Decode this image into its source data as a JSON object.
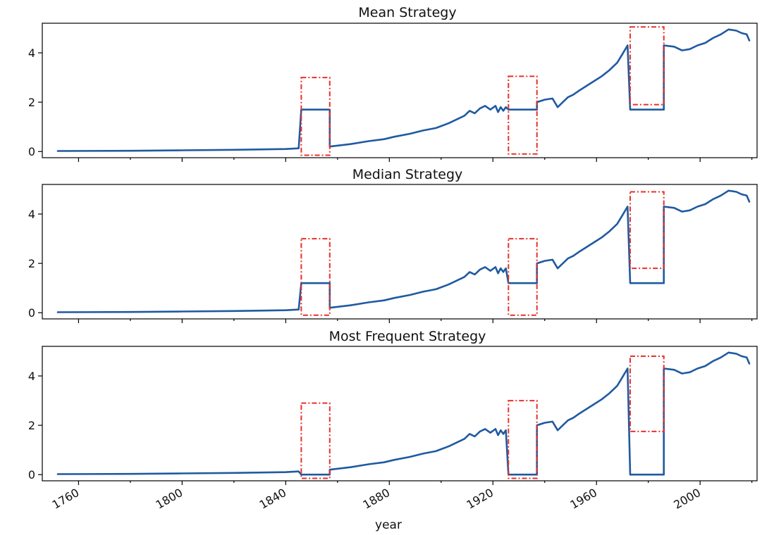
{
  "colors": {
    "series": "#1f5aa0",
    "gap_box": "#e8302a"
  },
  "xlabel": "year",
  "chart_data": [
    {
      "type": "line",
      "title": "Mean Strategy",
      "fill_value": 1.7,
      "xlim": [
        1746,
        2022
      ],
      "ylim": [
        -0.25,
        5.2
      ],
      "yticks": [
        0,
        2,
        4
      ],
      "xticks": [
        1760,
        1800,
        1840,
        1880,
        1920,
        1960,
        2000
      ],
      "show_xtick_labels": false,
      "gap_boxes": [
        {
          "x": [
            1846,
            1857
          ],
          "y": [
            -0.15,
            3.0
          ]
        },
        {
          "x": [
            1926,
            1937
          ],
          "y": [
            -0.1,
            3.05
          ]
        },
        {
          "x": [
            1973,
            1986
          ],
          "y": [
            1.9,
            5.05
          ]
        }
      ]
    },
    {
      "type": "line",
      "title": "Median Strategy",
      "fill_value": 1.2,
      "xlim": [
        1746,
        2022
      ],
      "ylim": [
        -0.25,
        5.2
      ],
      "yticks": [
        0,
        2,
        4
      ],
      "xticks": [
        1760,
        1800,
        1840,
        1880,
        1920,
        1960,
        2000
      ],
      "show_xtick_labels": false,
      "gap_boxes": [
        {
          "x": [
            1846,
            1857
          ],
          "y": [
            -0.1,
            3.0
          ]
        },
        {
          "x": [
            1926,
            1937
          ],
          "y": [
            -0.1,
            3.0
          ]
        },
        {
          "x": [
            1973,
            1986
          ],
          "y": [
            1.8,
            4.9
          ]
        }
      ]
    },
    {
      "type": "line",
      "title": "Most Frequent Strategy",
      "fill_value": 0.0,
      "xlim": [
        1746,
        2022
      ],
      "ylim": [
        -0.25,
        5.2
      ],
      "yticks": [
        0,
        2,
        4
      ],
      "xticks": [
        1760,
        1800,
        1840,
        1880,
        1920,
        1960,
        2000
      ],
      "xtick_labels": [
        "1760",
        "1800",
        "1840",
        "1880",
        "1920",
        "1960",
        "2000"
      ],
      "show_xtick_labels": true,
      "gap_boxes": [
        {
          "x": [
            1846,
            1857
          ],
          "y": [
            -0.15,
            2.9
          ]
        },
        {
          "x": [
            1926,
            1937
          ],
          "y": [
            -0.15,
            3.0
          ]
        },
        {
          "x": [
            1973,
            1986
          ],
          "y": [
            1.75,
            4.8
          ]
        }
      ]
    }
  ],
  "series_points": [
    [
      1752,
      0.02
    ],
    [
      1780,
      0.03
    ],
    [
      1800,
      0.05
    ],
    [
      1820,
      0.07
    ],
    [
      1840,
      0.1
    ],
    [
      1845,
      0.13
    ],
    [
      1846,
      "GAP"
    ],
    [
      1857,
      "GAP"
    ],
    [
      1857,
      0.2
    ],
    [
      1865,
      0.3
    ],
    [
      1872,
      0.42
    ],
    [
      1878,
      0.5
    ],
    [
      1882,
      0.6
    ],
    [
      1888,
      0.72
    ],
    [
      1893,
      0.85
    ],
    [
      1898,
      0.95
    ],
    [
      1903,
      1.15
    ],
    [
      1906,
      1.3
    ],
    [
      1909,
      1.45
    ],
    [
      1911,
      1.65
    ],
    [
      1913,
      1.55
    ],
    [
      1915,
      1.75
    ],
    [
      1917,
      1.85
    ],
    [
      1919,
      1.7
    ],
    [
      1921,
      1.85
    ],
    [
      1922,
      1.6
    ],
    [
      1923,
      1.8
    ],
    [
      1924,
      1.65
    ],
    [
      1925,
      1.8
    ],
    [
      1926,
      "GAP"
    ],
    [
      1937,
      "GAP"
    ],
    [
      1937,
      2.0
    ],
    [
      1940,
      2.1
    ],
    [
      1943,
      2.15
    ],
    [
      1945,
      1.8
    ],
    [
      1947,
      2.0
    ],
    [
      1949,
      2.2
    ],
    [
      1951,
      2.3
    ],
    [
      1953,
      2.45
    ],
    [
      1956,
      2.65
    ],
    [
      1959,
      2.85
    ],
    [
      1962,
      3.05
    ],
    [
      1965,
      3.3
    ],
    [
      1968,
      3.6
    ],
    [
      1970,
      3.95
    ],
    [
      1972,
      4.3
    ],
    [
      1973,
      "GAP"
    ],
    [
      1986,
      "GAP"
    ],
    [
      1986,
      4.3
    ],
    [
      1990,
      4.25
    ],
    [
      1993,
      4.1
    ],
    [
      1996,
      4.15
    ],
    [
      1999,
      4.3
    ],
    [
      2002,
      4.4
    ],
    [
      2005,
      4.6
    ],
    [
      2008,
      4.75
    ],
    [
      2011,
      4.95
    ],
    [
      2014,
      4.9
    ],
    [
      2016,
      4.8
    ],
    [
      2018,
      4.75
    ],
    [
      2019,
      4.5
    ]
  ]
}
